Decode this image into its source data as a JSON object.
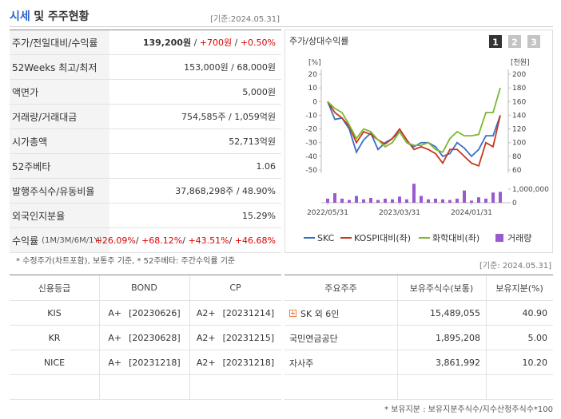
{
  "header": {
    "title_main": "시세",
    "title_rest": "및 주주현황",
    "date": "[기준:2024.05.31]"
  },
  "summary_table": {
    "rows": [
      {
        "label": [
          "주가/전일대비/수익률"
        ],
        "value": [
          "139,200원",
          " / ",
          "+700원",
          " / ",
          "+0.50%"
        ]
      },
      {
        "label": [
          "52Weeks 최고/최저"
        ],
        "value": [
          "153,000원 / 68,000원"
        ]
      },
      {
        "label": [
          "액면가"
        ],
        "value": [
          "5,000원"
        ]
      },
      {
        "label": [
          "거래량/거래대금"
        ],
        "value": [
          "754,585주 / 1,059억원"
        ]
      },
      {
        "label": [
          "시가총액"
        ],
        "value": [
          "52,713억원"
        ]
      },
      {
        "label": [
          "52주베타"
        ],
        "value": [
          "1.06"
        ]
      },
      {
        "label": [
          "발행주식수/유동비율"
        ],
        "value": [
          "37,868,298주 / 48.90%"
        ]
      },
      {
        "label": [
          "외국인지분율"
        ],
        "value": [
          "15.29%"
        ]
      },
      {
        "label": [
          "수익률",
          "(1M/3M/6M/1Y)"
        ],
        "value": [
          "+26.09%",
          "/ ",
          "+68.12%",
          "/ ",
          "+43.51%",
          "/ ",
          "+46.68%"
        ]
      }
    ]
  },
  "summary_note": "* 수정주가(차트포함), 보통주 기준, * 52주베타: 주간수익률 기준",
  "chart_panel": {
    "title": "주가/상대수익률",
    "buttons": [
      "1",
      "2",
      "3"
    ]
  },
  "chart_data": {
    "type": "line",
    "y_label": "[%]",
    "y2_label": "[천원]",
    "categories": [
      "2022/05/31",
      null,
      null,
      null,
      null,
      null,
      null,
      null,
      null,
      null,
      "2023/03/31",
      null,
      null,
      null,
      null,
      null,
      null,
      null,
      null,
      null,
      "2024/01/31",
      null,
      null,
      null,
      null
    ],
    "ylim": [
      -50,
      20
    ],
    "yticks": [
      20,
      10,
      0,
      -10,
      -20,
      -30,
      -40,
      -50
    ],
    "y2lim": [
      60,
      200
    ],
    "y2ticks": [
      200,
      180,
      160,
      140,
      120,
      100,
      80,
      60
    ],
    "y3lim": [
      0,
      1000000
    ],
    "y3ticks": [
      {
        "value": 1000000,
        "label": "1,000,000"
      },
      0
    ],
    "series": [
      {
        "name": "SKC",
        "color": "#3b6fc4",
        "values": [
          0,
          -13,
          -12,
          -20,
          -37,
          -28,
          -23,
          -35,
          -30,
          -27,
          -22,
          -30,
          -33,
          -30,
          -30,
          -33,
          -40,
          -38,
          -30,
          -34,
          -40,
          -35,
          -25,
          -25,
          -10
        ]
      },
      {
        "name": "KOSPI대비(좌)",
        "color": "#c8361f",
        "values": [
          0,
          -8,
          -12,
          -18,
          -30,
          -22,
          -24,
          -28,
          -31,
          -27,
          -20,
          -28,
          -35,
          -33,
          -35,
          -38,
          -45,
          -35,
          -35,
          -40,
          -45,
          -47,
          -30,
          -33,
          -10
        ]
      },
      {
        "name": "화학대비(좌)",
        "color": "#7cb82f",
        "values": [
          0,
          -5,
          -8,
          -17,
          -27,
          -20,
          -22,
          -28,
          -33,
          -30,
          -22,
          -30,
          -32,
          -32,
          -30,
          -35,
          -37,
          -27,
          -22,
          -25,
          -25,
          -24,
          -8,
          -8,
          10
        ]
      },
      {
        "name": "거래량",
        "color": "#9b59d0",
        "axis": "y3",
        "bar": true,
        "values": [
          300000,
          700000,
          300000,
          200000,
          500000,
          250000,
          350000,
          200000,
          300000,
          250000,
          450000,
          250000,
          1400000,
          500000,
          250000,
          300000,
          250000,
          200000,
          300000,
          900000,
          150000,
          400000,
          300000,
          750000,
          800000
        ]
      }
    ]
  },
  "shareholder_date": "[기준: 2024.05.31]",
  "credit_table": {
    "columns": [
      "신용등급",
      "BOND",
      "CP"
    ],
    "rows": [
      [
        "KIS",
        [
          "A+",
          "[20230626]"
        ],
        [
          "A2+",
          "[20231214]"
        ]
      ],
      [
        "KR",
        [
          "A+",
          "[20230628]"
        ],
        [
          "A2+",
          "[20231215]"
        ]
      ],
      [
        "NICE",
        [
          "A+",
          "[20231218]"
        ],
        [
          "A2+",
          "[20231218]"
        ]
      ]
    ]
  },
  "holder_table": {
    "columns": [
      "주요주주",
      "보유주식수(보통)",
      "보유지분(%)"
    ],
    "rows": [
      [
        "SK 외 6인",
        "15,489,055",
        "40.90"
      ],
      [
        "국민연금공단",
        "1,895,208",
        "5.00"
      ],
      [
        "자사주",
        "3,861,992",
        "10.20"
      ]
    ]
  },
  "holder_note": "* 보유지분 : 보유지분주식수/지수산정주식수*100"
}
